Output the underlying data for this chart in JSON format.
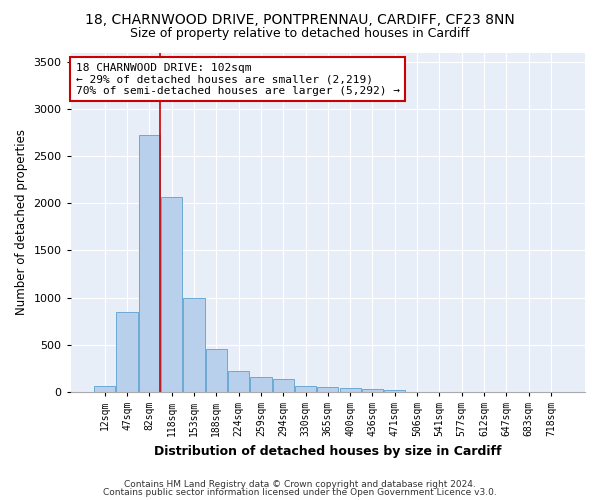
{
  "title1": "18, CHARNWOOD DRIVE, PONTPRENNAU, CARDIFF, CF23 8NN",
  "title2": "Size of property relative to detached houses in Cardiff",
  "xlabel": "Distribution of detached houses by size in Cardiff",
  "ylabel": "Number of detached properties",
  "categories": [
    "12sqm",
    "47sqm",
    "82sqm",
    "118sqm",
    "153sqm",
    "188sqm",
    "224sqm",
    "259sqm",
    "294sqm",
    "330sqm",
    "365sqm",
    "400sqm",
    "436sqm",
    "471sqm",
    "506sqm",
    "541sqm",
    "577sqm",
    "612sqm",
    "647sqm",
    "683sqm",
    "718sqm"
  ],
  "values": [
    60,
    850,
    2720,
    2070,
    1000,
    450,
    220,
    155,
    135,
    65,
    55,
    45,
    30,
    25,
    0,
    0,
    0,
    0,
    0,
    0,
    0
  ],
  "bar_color": "#b8d0ec",
  "bar_edge_color": "#6aaad4",
  "vline_x_pos": 2.5,
  "vline_color": "#cc0000",
  "annotation_text": "18 CHARNWOOD DRIVE: 102sqm\n← 29% of detached houses are smaller (2,219)\n70% of semi-detached houses are larger (5,292) →",
  "annotation_box_color": "#ffffff",
  "annotation_box_edge": "#cc0000",
  "ylim": [
    0,
    3600
  ],
  "yticks": [
    0,
    500,
    1000,
    1500,
    2000,
    2500,
    3000,
    3500
  ],
  "background_color": "#e8eef8",
  "footer1": "Contains HM Land Registry data © Crown copyright and database right 2024.",
  "footer2": "Contains public sector information licensed under the Open Government Licence v3.0.",
  "title1_fontsize": 10,
  "title2_fontsize": 9,
  "xlabel_fontsize": 9,
  "ylabel_fontsize": 8.5,
  "annotation_fontsize": 8,
  "footer_fontsize": 6.5
}
